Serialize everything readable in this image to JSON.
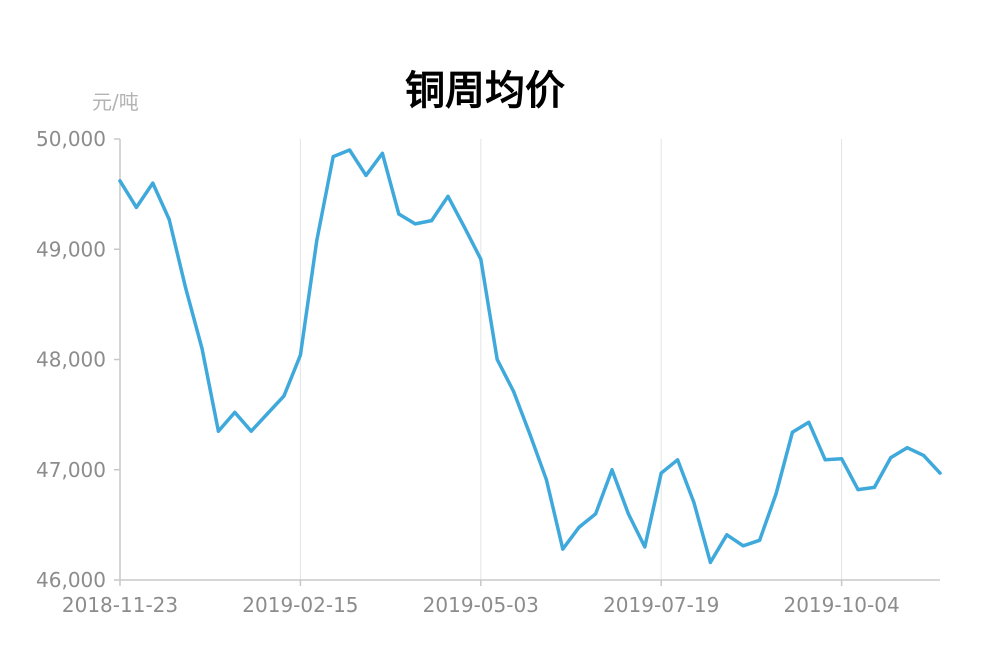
{
  "chart_data": {
    "type": "line",
    "title": "铜周均价",
    "ylabel": "元/吨",
    "xlabel": "",
    "ylim": [
      46000,
      50000
    ],
    "yticks": [
      "50,000",
      "49,000",
      "48,000",
      "47,000",
      "46,000"
    ],
    "ytick_values": [
      50000,
      49000,
      48000,
      47000,
      46000
    ],
    "xtick_labels": [
      "2018-11-23",
      "2019-02-15",
      "2019-05-03",
      "2019-07-19",
      "2019-10-04"
    ],
    "xtick_indices": [
      0,
      11,
      22,
      33,
      44
    ],
    "grid": "vertical",
    "line_color": "#3fa9dc",
    "series": [
      {
        "values": [
          49620,
          49380,
          49600,
          49270,
          48650,
          48100,
          47350,
          47520,
          47350,
          47510,
          47670,
          48040,
          49080,
          49840,
          49900,
          49670,
          49870,
          49320,
          49230,
          49260,
          49480,
          49200,
          48910,
          48000,
          47710,
          47320,
          46910,
          46280,
          46480,
          46600,
          47000,
          46600,
          46300,
          46970,
          47090,
          46700,
          46160,
          46410,
          46310,
          46360,
          46780,
          47340,
          47430,
          47090,
          47100,
          46820,
          46840,
          47110,
          47200,
          47130,
          46970
        ]
      }
    ]
  }
}
